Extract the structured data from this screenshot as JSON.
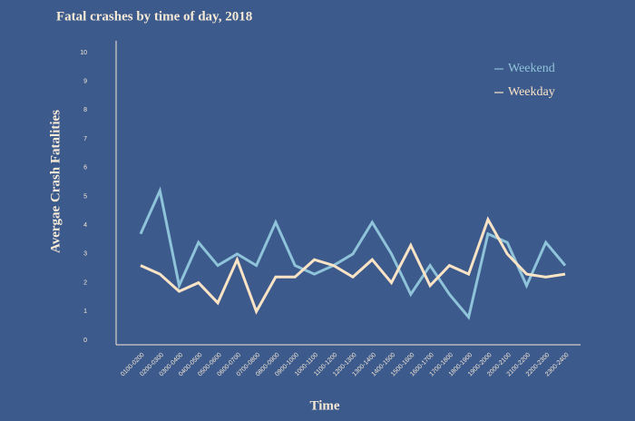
{
  "chart_data": {
    "type": "line",
    "title": "Fatal crashes by time of day, 2018",
    "x_label": "Time",
    "y_label": "Avergae Crash Fatalities",
    "categories": [
      "0100-0200",
      "0200-0300",
      "0300-0400",
      "0400-0500",
      "0500-0600",
      "0600-0700",
      "0700-0800",
      "0800-0900",
      "0900-1000",
      "1000-1100",
      "1100-1200",
      "1200-1300",
      "1300-1400",
      "1400-1500",
      "1500-1600",
      "1600-1700",
      "1700-1800",
      "1800-1900",
      "1900-2000",
      "2000-2100",
      "2100-2200",
      "2200-2300",
      "2300-2400"
    ],
    "series": [
      {
        "name": "Weekend",
        "color": "#8ec3da",
        "values": [
          3.7,
          5.2,
          1.9,
          3.4,
          2.6,
          3.0,
          2.6,
          4.1,
          2.6,
          2.3,
          2.6,
          3.0,
          4.1,
          3.0,
          1.6,
          2.6,
          1.6,
          0.8,
          3.7,
          3.4,
          1.9,
          3.4,
          2.6
        ]
      },
      {
        "name": "Weekday",
        "color": "#fbe4c6",
        "values": [
          2.6,
          2.3,
          1.7,
          2.0,
          1.3,
          2.8,
          1.0,
          2.2,
          2.2,
          2.8,
          2.6,
          2.2,
          2.8,
          2.0,
          3.3,
          1.9,
          2.6,
          2.3,
          4.2,
          3.0,
          2.3,
          2.2,
          2.3
        ]
      }
    ],
    "ylim": [
      0,
      10
    ],
    "yticks": [
      0,
      1,
      2,
      3,
      4,
      5,
      6,
      7,
      8,
      9,
      10
    ],
    "legend": "upper right"
  }
}
